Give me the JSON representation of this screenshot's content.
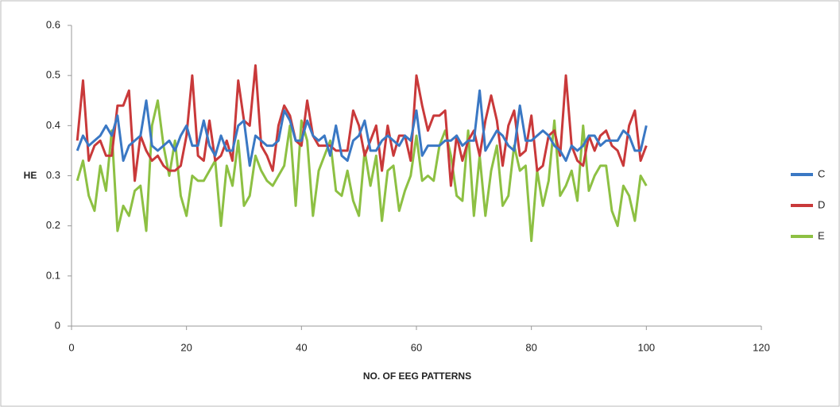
{
  "chart_data": {
    "type": "line",
    "x_label": "NO. OF EEG PATTERNS",
    "y_label": "HE",
    "x": [
      1,
      2,
      3,
      4,
      5,
      6,
      7,
      8,
      9,
      10,
      11,
      12,
      13,
      14,
      15,
      16,
      17,
      18,
      19,
      20,
      21,
      22,
      23,
      24,
      25,
      26,
      27,
      28,
      29,
      30,
      31,
      32,
      33,
      34,
      35,
      36,
      37,
      38,
      39,
      40,
      41,
      42,
      43,
      44,
      45,
      46,
      47,
      48,
      49,
      50,
      51,
      52,
      53,
      54,
      55,
      56,
      57,
      58,
      59,
      60,
      61,
      62,
      63,
      64,
      65,
      66,
      67,
      68,
      69,
      70,
      71,
      72,
      73,
      74,
      75,
      76,
      77,
      78,
      79,
      80,
      81,
      82,
      83,
      84,
      85,
      86,
      87,
      88,
      89,
      90,
      91,
      92,
      93,
      94,
      95,
      96,
      97,
      98,
      99,
      100
    ],
    "series": [
      {
        "name": "C",
        "color": "#3a78c4",
        "values": [
          0.35,
          0.38,
          0.36,
          0.37,
          0.38,
          0.4,
          0.38,
          0.42,
          0.33,
          0.36,
          0.37,
          0.38,
          0.45,
          0.36,
          0.35,
          0.36,
          0.37,
          0.35,
          0.38,
          0.4,
          0.36,
          0.36,
          0.41,
          0.36,
          0.34,
          0.38,
          0.35,
          0.35,
          0.4,
          0.41,
          0.32,
          0.38,
          0.37,
          0.36,
          0.36,
          0.37,
          0.43,
          0.41,
          0.37,
          0.37,
          0.41,
          0.38,
          0.37,
          0.38,
          0.34,
          0.4,
          0.34,
          0.33,
          0.37,
          0.38,
          0.41,
          0.35,
          0.35,
          0.37,
          0.38,
          0.37,
          0.36,
          0.38,
          0.37,
          0.43,
          0.34,
          0.36,
          0.36,
          0.36,
          0.37,
          0.37,
          0.38,
          0.36,
          0.37,
          0.37,
          0.47,
          0.35,
          0.37,
          0.39,
          0.38,
          0.36,
          0.35,
          0.44,
          0.37,
          0.37,
          0.38,
          0.39,
          0.38,
          0.36,
          0.35,
          0.33,
          0.36,
          0.35,
          0.36,
          0.38,
          0.38,
          0.36,
          0.37,
          0.37,
          0.37,
          0.39,
          0.38,
          0.35,
          0.35,
          0.4
        ]
      },
      {
        "name": "D",
        "color": "#c9393a",
        "values": [
          0.37,
          0.49,
          0.33,
          0.36,
          0.37,
          0.34,
          0.34,
          0.44,
          0.44,
          0.47,
          0.29,
          0.38,
          0.35,
          0.33,
          0.34,
          0.32,
          0.31,
          0.31,
          0.32,
          0.38,
          0.5,
          0.34,
          0.33,
          0.41,
          0.33,
          0.34,
          0.37,
          0.33,
          0.49,
          0.41,
          0.4,
          0.52,
          0.36,
          0.34,
          0.31,
          0.4,
          0.44,
          0.42,
          0.37,
          0.36,
          0.45,
          0.38,
          0.36,
          0.36,
          0.36,
          0.35,
          0.35,
          0.35,
          0.43,
          0.4,
          0.34,
          0.37,
          0.4,
          0.31,
          0.4,
          0.34,
          0.38,
          0.38,
          0.33,
          0.5,
          0.44,
          0.39,
          0.42,
          0.42,
          0.43,
          0.28,
          0.38,
          0.33,
          0.37,
          0.39,
          0.34,
          0.41,
          0.46,
          0.41,
          0.32,
          0.4,
          0.43,
          0.34,
          0.35,
          0.42,
          0.31,
          0.32,
          0.38,
          0.39,
          0.34,
          0.5,
          0.36,
          0.33,
          0.32,
          0.38,
          0.35,
          0.38,
          0.39,
          0.36,
          0.35,
          0.32,
          0.4,
          0.43,
          0.33,
          0.36
        ]
      },
      {
        "name": "E",
        "color": "#8dc043",
        "values": [
          0.29,
          0.33,
          0.26,
          0.23,
          0.32,
          0.27,
          0.39,
          0.19,
          0.24,
          0.22,
          0.27,
          0.28,
          0.19,
          0.4,
          0.45,
          0.36,
          0.3,
          0.37,
          0.26,
          0.22,
          0.3,
          0.29,
          0.29,
          0.31,
          0.33,
          0.2,
          0.32,
          0.28,
          0.37,
          0.24,
          0.26,
          0.34,
          0.31,
          0.29,
          0.28,
          0.3,
          0.32,
          0.4,
          0.24,
          0.41,
          0.37,
          0.22,
          0.31,
          0.34,
          0.37,
          0.27,
          0.26,
          0.31,
          0.25,
          0.22,
          0.35,
          0.28,
          0.34,
          0.21,
          0.31,
          0.32,
          0.23,
          0.27,
          0.3,
          0.38,
          0.29,
          0.3,
          0.29,
          0.36,
          0.39,
          0.34,
          0.26,
          0.25,
          0.39,
          0.22,
          0.34,
          0.22,
          0.31,
          0.36,
          0.24,
          0.26,
          0.36,
          0.31,
          0.32,
          0.17,
          0.31,
          0.24,
          0.29,
          0.41,
          0.26,
          0.28,
          0.31,
          0.25,
          0.4,
          0.27,
          0.3,
          0.32,
          0.32,
          0.23,
          0.2,
          0.28,
          0.26,
          0.21,
          0.3,
          0.28
        ]
      }
    ],
    "xlim": [
      0,
      120
    ],
    "xticks": [
      0,
      20,
      40,
      60,
      80,
      100,
      120
    ],
    "ylim": [
      0,
      0.6
    ],
    "yticks": [
      0,
      0.1,
      0.2,
      0.3,
      0.4,
      0.5,
      0.6
    ],
    "grid": false,
    "legend": "right"
  }
}
